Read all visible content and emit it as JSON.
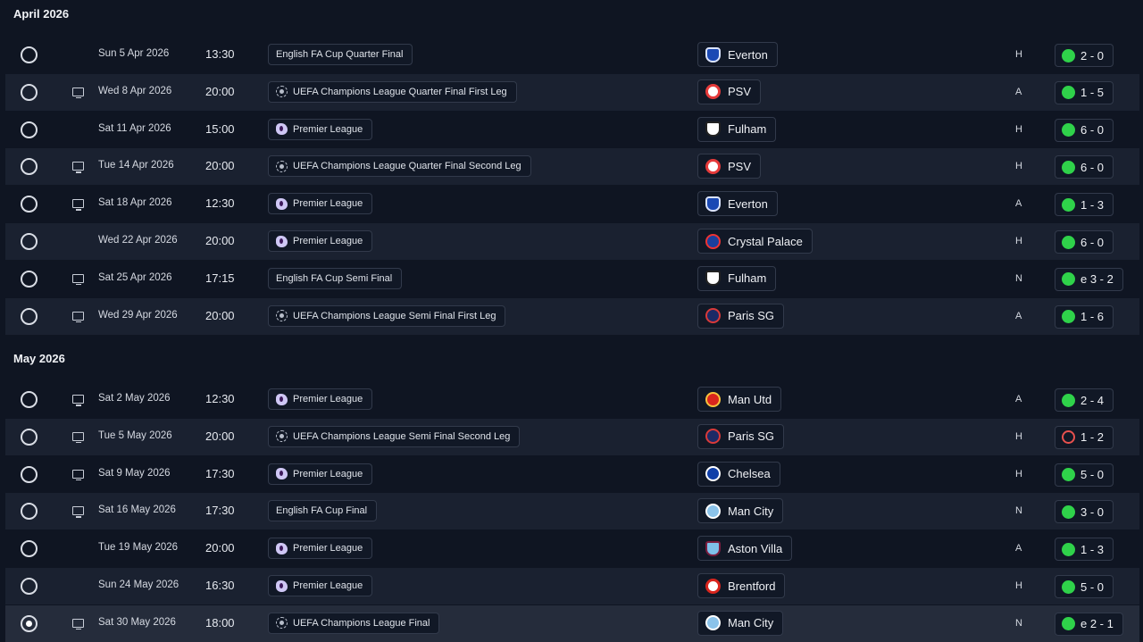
{
  "months": [
    {
      "label": "April 2026",
      "fixtures": [
        {
          "date": "Sun 5 Apr 2026",
          "time": "13:30",
          "tv": false,
          "competition": "English FA Cup Quarter Final",
          "comp_icon": "none",
          "opponent": "Everton",
          "crest": "everton",
          "venue": "H",
          "result": "2 - 0",
          "outcome": "win",
          "selected": false
        },
        {
          "date": "Wed 8 Apr 2026",
          "time": "20:00",
          "tv": true,
          "competition": "UEFA Champions League Quarter Final First Leg",
          "comp_icon": "ucl",
          "opponent": "PSV",
          "crest": "psv",
          "venue": "A",
          "result": "1 - 5",
          "outcome": "win",
          "selected": false
        },
        {
          "date": "Sat 11 Apr 2026",
          "time": "15:00",
          "tv": false,
          "competition": "Premier League",
          "comp_icon": "pl",
          "opponent": "Fulham",
          "crest": "fulham",
          "venue": "H",
          "result": "6 - 0",
          "outcome": "win",
          "selected": false
        },
        {
          "date": "Tue 14 Apr 2026",
          "time": "20:00",
          "tv": true,
          "competition": "UEFA Champions League Quarter Final Second Leg",
          "comp_icon": "ucl",
          "opponent": "PSV",
          "crest": "psv",
          "venue": "H",
          "result": "6 - 0",
          "outcome": "win",
          "selected": false
        },
        {
          "date": "Sat 18 Apr 2026",
          "time": "12:30",
          "tv": true,
          "competition": "Premier League",
          "comp_icon": "pl",
          "opponent": "Everton",
          "crest": "everton",
          "venue": "A",
          "result": "1 - 3",
          "outcome": "win",
          "selected": false
        },
        {
          "date": "Wed 22 Apr 2026",
          "time": "20:00",
          "tv": false,
          "competition": "Premier League",
          "comp_icon": "pl",
          "opponent": "Crystal Palace",
          "crest": "palace",
          "venue": "H",
          "result": "6 - 0",
          "outcome": "win",
          "selected": false
        },
        {
          "date": "Sat 25 Apr 2026",
          "time": "17:15",
          "tv": true,
          "competition": "English FA Cup Semi Final",
          "comp_icon": "none",
          "opponent": "Fulham",
          "crest": "fulham",
          "venue": "N",
          "result": "e 3 - 2",
          "outcome": "win",
          "selected": false
        },
        {
          "date": "Wed 29 Apr 2026",
          "time": "20:00",
          "tv": true,
          "competition": "UEFA Champions League Semi Final First Leg",
          "comp_icon": "ucl",
          "opponent": "Paris SG",
          "crest": "psg",
          "venue": "A",
          "result": "1 - 6",
          "outcome": "win",
          "selected": false
        }
      ]
    },
    {
      "label": "May 2026",
      "fixtures": [
        {
          "date": "Sat 2 May 2026",
          "time": "12:30",
          "tv": true,
          "competition": "Premier League",
          "comp_icon": "pl",
          "opponent": "Man Utd",
          "crest": "manutd",
          "venue": "A",
          "result": "2 - 4",
          "outcome": "win",
          "selected": false
        },
        {
          "date": "Tue 5 May 2026",
          "time": "20:00",
          "tv": true,
          "competition": "UEFA Champions League Semi Final Second Leg",
          "comp_icon": "ucl",
          "opponent": "Paris SG",
          "crest": "psg",
          "venue": "H",
          "result": "1 - 2",
          "outcome": "loss",
          "selected": false
        },
        {
          "date": "Sat 9 May 2026",
          "time": "17:30",
          "tv": true,
          "competition": "Premier League",
          "comp_icon": "pl",
          "opponent": "Chelsea",
          "crest": "chelsea",
          "venue": "H",
          "result": "5 - 0",
          "outcome": "win",
          "selected": false
        },
        {
          "date": "Sat 16 May 2026",
          "time": "17:30",
          "tv": true,
          "competition": "English FA Cup Final",
          "comp_icon": "none",
          "opponent": "Man City",
          "crest": "mancity",
          "venue": "N",
          "result": "3 - 0",
          "outcome": "win",
          "selected": false
        },
        {
          "date": "Tue 19 May 2026",
          "time": "20:00",
          "tv": false,
          "competition": "Premier League",
          "comp_icon": "pl",
          "opponent": "Aston Villa",
          "crest": "villa",
          "venue": "A",
          "result": "1 - 3",
          "outcome": "win",
          "selected": false
        },
        {
          "date": "Sun 24 May 2026",
          "time": "16:30",
          "tv": false,
          "competition": "Premier League",
          "comp_icon": "pl",
          "opponent": "Brentford",
          "crest": "brentford",
          "venue": "H",
          "result": "5 - 0",
          "outcome": "win",
          "selected": false
        },
        {
          "date": "Sat 30 May 2026",
          "time": "18:00",
          "tv": true,
          "competition": "UEFA Champions League Final",
          "comp_icon": "ucl",
          "opponent": "Man City",
          "crest": "mancity",
          "venue": "N",
          "result": "e 2 - 1",
          "outcome": "win",
          "selected": true
        }
      ]
    }
  ]
}
